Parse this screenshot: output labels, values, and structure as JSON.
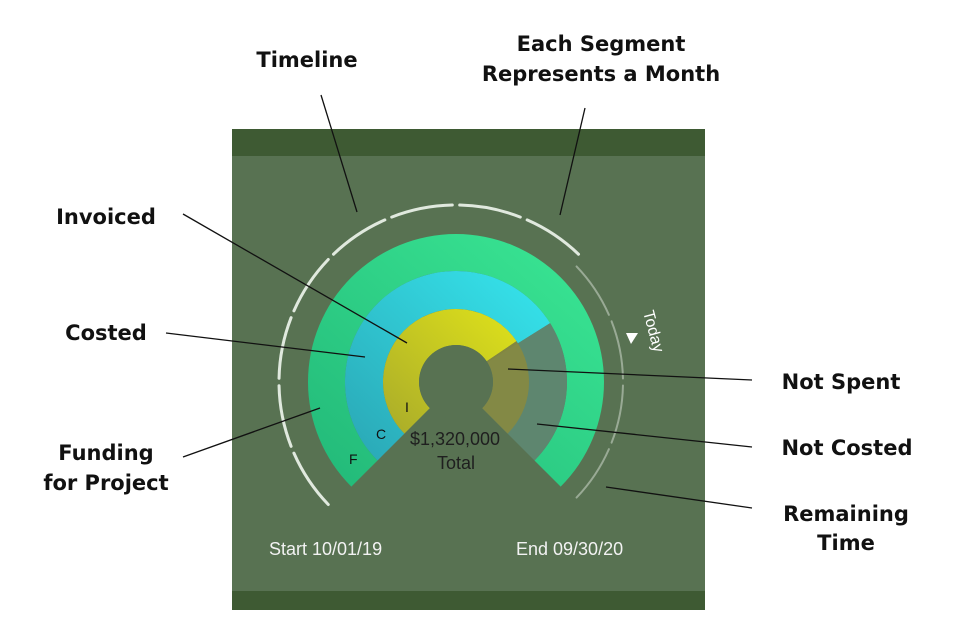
{
  "callouts": {
    "timeline": "Timeline",
    "segment_line1": "Each Segment",
    "segment_line2": "Represents a Month",
    "invoiced": "Invoiced",
    "costed": "Costed",
    "funding_line1": "Funding",
    "funding_line2": "for Project",
    "not_spent": "Not Spent",
    "not_costed": "Not Costed",
    "remaining_line1": "Remaining",
    "remaining_line2": "Time"
  },
  "gauge": {
    "total_amount": "$1,320,000",
    "total_label": "Total",
    "start_label": "Start 10/01/19",
    "end_label": "End 09/30/20",
    "today_label": "Today",
    "ring_letters": {
      "funding": "F",
      "costed": "C",
      "invoiced": "I"
    },
    "timeline_months": 12,
    "colors": {
      "panel": "#587252",
      "panel_band": "#3e5a33",
      "funding_ring": "#32d98c",
      "costed_ring": "#2ecfd8",
      "invoiced_ring": "#cfd11e",
      "not_spent": "#8a8a3e",
      "not_costed": "#5f8a74",
      "timeline": "#e8efe6"
    }
  }
}
